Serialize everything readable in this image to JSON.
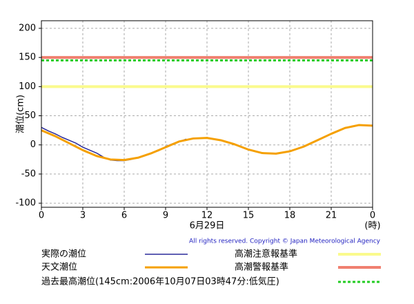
{
  "chart_data": {
    "type": "line",
    "y_label": "潮位(cm)",
    "date_label": "6月29日",
    "x_unit": "(時)",
    "copyright": "All rights reserved. Copyright © Japan Meteorological Agency",
    "xlim": [
      0,
      24
    ],
    "xticks": [
      0,
      3,
      6,
      9,
      12,
      15,
      18,
      21,
      {
        "value": 24,
        "label": "0"
      }
    ],
    "ylim": [
      -107,
      213
    ],
    "yticks": [
      200,
      150,
      100,
      50,
      0,
      -50,
      -100
    ],
    "grid": true,
    "series": [
      {
        "name": "実際の潮位",
        "color": "#2a2a9a",
        "width": 1.5,
        "x": [
          0,
          0.5,
          1,
          1.5,
          2,
          2.5,
          3,
          3.5,
          4,
          4.5,
          5,
          5.5,
          6,
          6.5,
          7,
          7.5,
          8,
          8.5,
          9,
          9.5,
          10,
          10.5
        ],
        "values": [
          30,
          24,
          19,
          13,
          8,
          3,
          -4,
          -9,
          -14,
          -21,
          -26,
          -27,
          -27,
          -25,
          -22,
          -18,
          -14,
          -10,
          -3,
          2,
          6,
          10
        ]
      },
      {
        "name": "天文潮位",
        "color": "#f5a000",
        "width": 3,
        "x": [
          0,
          1,
          2,
          3,
          4,
          5,
          6,
          7,
          8,
          9,
          10,
          11,
          12,
          13,
          14,
          15,
          16,
          17,
          18,
          19,
          20,
          21,
          22,
          23,
          24
        ],
        "values": [
          25,
          15,
          3,
          -9,
          -19,
          -25,
          -26,
          -22,
          -14,
          -4,
          6,
          11,
          12,
          8,
          1,
          -8,
          -14,
          -15,
          -11,
          -3,
          8,
          19,
          29,
          34,
          33
        ]
      }
    ],
    "reference_lines": [
      {
        "name": "高潮注意報基準",
        "value": 100,
        "color": "#fafa8c",
        "width": 4
      },
      {
        "name": "高潮警報基準",
        "value": 150,
        "color": "#f08070",
        "width": 4
      },
      {
        "name": "過去最高潮位(145cm:2006年10月07日03時47分:低気圧)",
        "value": 145,
        "color": "#22cc22",
        "width": 3,
        "dashed": true
      }
    ]
  }
}
